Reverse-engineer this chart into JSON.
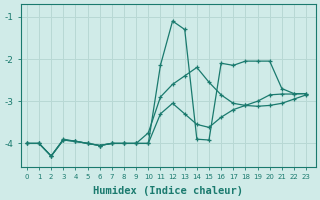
{
  "bg_color": "#d0ebe8",
  "grid_color": "#b8d8d4",
  "line_color": "#1a7a6e",
  "xlabel": "Humidex (Indice chaleur)",
  "xlabel_fontsize": 7.5,
  "ytick_values": [
    -1,
    -2,
    -3,
    -4
  ],
  "xtick_values": [
    0,
    1,
    2,
    3,
    4,
    5,
    6,
    7,
    8,
    9,
    10,
    11,
    12,
    13,
    14,
    15,
    16,
    17,
    18,
    19,
    20,
    21,
    22,
    23
  ],
  "xlim": [
    -0.5,
    23.8
  ],
  "ylim": [
    -4.55,
    -0.7
  ],
  "series": [
    {
      "x": [
        0,
        1,
        2,
        3,
        4,
        5,
        6,
        7,
        8,
        9,
        10,
        11,
        12,
        13,
        14,
        15,
        16,
        17,
        18,
        19,
        20,
        21,
        22,
        23
      ],
      "y": [
        -4.0,
        -4.0,
        -4.3,
        -3.9,
        -3.95,
        -4.0,
        -4.05,
        -4.0,
        -4.0,
        -4.0,
        -4.0,
        -2.15,
        -1.1,
        -1.3,
        -3.9,
        -3.92,
        -2.1,
        -2.15,
        -2.05,
        -2.05,
        -2.05,
        -2.7,
        -2.82,
        -2.82
      ]
    },
    {
      "x": [
        0,
        1,
        2,
        3,
        4,
        5,
        6,
        7,
        8,
        9,
        10,
        11,
        12,
        13,
        14,
        15,
        16,
        17,
        18,
        19,
        20,
        21,
        22,
        23
      ],
      "y": [
        -4.0,
        -4.0,
        -4.3,
        -3.92,
        -3.95,
        -4.0,
        -4.05,
        -4.0,
        -4.0,
        -4.0,
        -4.0,
        -3.3,
        -3.05,
        -3.3,
        -3.55,
        -3.62,
        -3.38,
        -3.2,
        -3.1,
        -3.0,
        -2.85,
        -2.83,
        -2.83,
        -2.82
      ]
    },
    {
      "x": [
        0,
        1,
        2,
        3,
        4,
        5,
        6,
        7,
        8,
        9,
        10,
        11,
        12,
        13,
        14,
        15,
        16,
        17,
        18,
        19,
        20,
        21,
        22,
        23
      ],
      "y": [
        -4.0,
        -4.0,
        -4.3,
        -3.92,
        -3.95,
        -4.0,
        -4.05,
        -4.0,
        -4.0,
        -4.0,
        -3.75,
        -2.9,
        -2.6,
        -2.4,
        -2.2,
        -2.55,
        -2.85,
        -3.05,
        -3.1,
        -3.12,
        -3.1,
        -3.05,
        -2.95,
        -2.85
      ]
    }
  ]
}
